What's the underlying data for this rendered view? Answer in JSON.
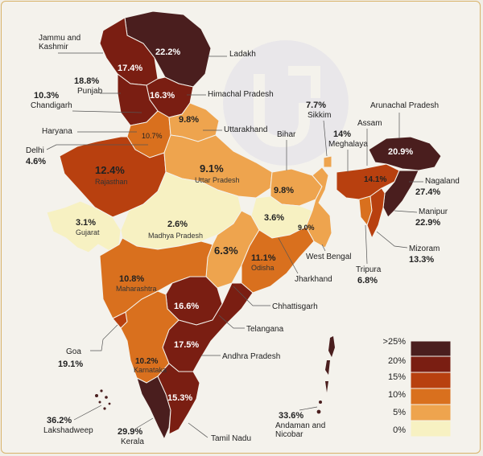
{
  "colors": {
    "gt25": "#4a1e1e",
    "c20": "#7a1e12",
    "c15": "#b8400f",
    "c10": "#d9701e",
    "c5": "#eea44e",
    "c0": "#f7f1c2",
    "background": "#f4f2ec",
    "border": "#d8b36a"
  },
  "states": {
    "jk": {
      "name": "Jammu and\nKashmir",
      "value": "17.4%"
    },
    "ladakh": {
      "name": "Ladakh",
      "value": "22.2%"
    },
    "punjab": {
      "name": "Punjab",
      "value": "18.8%"
    },
    "hp": {
      "name": "Himachal Pradesh",
      "value": "16.3%"
    },
    "chandigarh": {
      "name": "Chandigarh",
      "value": "10.3%"
    },
    "haryana": {
      "name": "Haryana",
      "value": "10.7%"
    },
    "uttarakhand": {
      "name": "Uttarakhand",
      "value": "9.8%"
    },
    "delhi": {
      "name": "Delhi",
      "value": "4.6%"
    },
    "rajasthan": {
      "name": "Rajasthan",
      "value": "12.4%"
    },
    "up": {
      "name": "Uttar Pradesh",
      "value": "9.1%"
    },
    "bihar": {
      "name": "Bihar",
      "value": "9.8%"
    },
    "sikkim": {
      "name": "Sikkim",
      "value": "7.7%"
    },
    "meghalaya": {
      "name": "Meghalaya",
      "value": "14%"
    },
    "assam": {
      "name": "Assam",
      "value": "14.1%"
    },
    "arunachal": {
      "name": "Arunachal Pradesh",
      "value": "20.9%"
    },
    "nagaland": {
      "name": "Nagaland",
      "value": "27.4%"
    },
    "manipur": {
      "name": "Manipur",
      "value": "22.9%"
    },
    "mizoram": {
      "name": "Mizoram",
      "value": "13.3%"
    },
    "tripura": {
      "name": "Tripura",
      "value": "6.8%"
    },
    "westbengal": {
      "name": "West Bengal",
      "value": "9.0%"
    },
    "jharkhand": {
      "name": "Jharkhand",
      "value": "3.6%"
    },
    "gujarat": {
      "name": "Gujarat",
      "value": "3.1%"
    },
    "mp": {
      "name": "Madhya Pradesh",
      "value": "2.6%"
    },
    "chhattisgarh": {
      "name": "Chhattisgarh",
      "value": "6.3%"
    },
    "odisha": {
      "name": "Odisha",
      "value": "11.1%"
    },
    "maharashtra": {
      "name": "Maharashtra",
      "value": "10.8%"
    },
    "telangana": {
      "name": "Telangana",
      "value": "16.6%"
    },
    "ap": {
      "name": "Andhra Pradesh",
      "value": "17.5%"
    },
    "goa": {
      "name": "Goa",
      "value": "19.1%"
    },
    "karnataka": {
      "name": "Karnataka",
      "value": "10.2%"
    },
    "kerala": {
      "name": "Kerala",
      "value": "29.9%"
    },
    "tn": {
      "name": "Tamil Nadu",
      "value": "15.3%"
    },
    "lakshadweep": {
      "name": "Lakshadweep",
      "value": "36.2%"
    },
    "andaman": {
      "name": "Andaman and\nNicobar",
      "value": "33.6%"
    }
  },
  "legend": {
    "ticks": [
      ">25%",
      "20%",
      "15%",
      "10%",
      "5%",
      "0%"
    ]
  }
}
